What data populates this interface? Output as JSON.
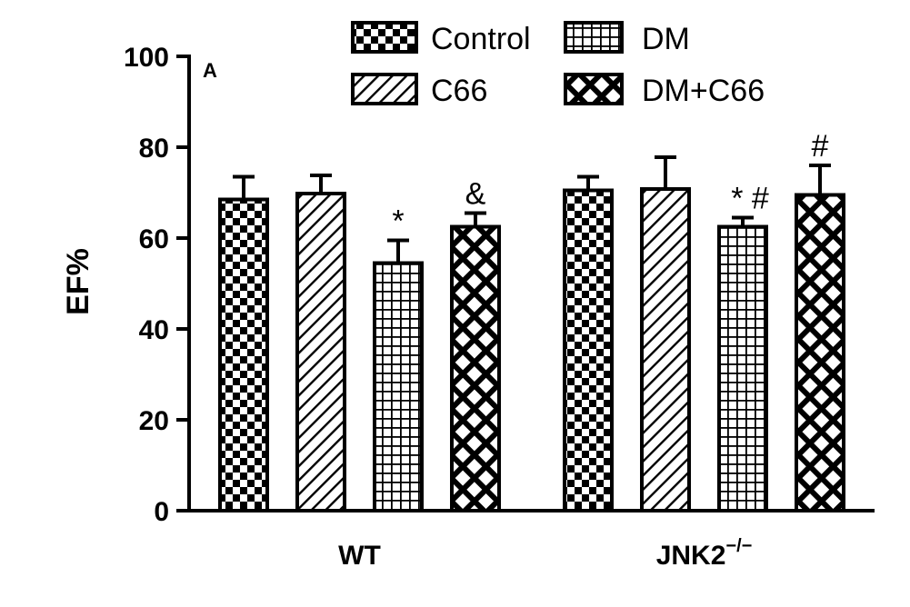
{
  "chart_data": {
    "type": "bar",
    "panel_label": "A",
    "ylabel": "EF%",
    "xlabel": "",
    "ylim": [
      0,
      100
    ],
    "yticks": [
      0,
      20,
      40,
      60,
      80,
      100
    ],
    "groups": [
      {
        "label": "WT",
        "superscript": ""
      },
      {
        "label": "JNK2",
        "superscript": "−/−"
      }
    ],
    "series": [
      {
        "name": "Control",
        "pattern": "checker",
        "values": [
          68.5,
          70.5
        ],
        "errors": [
          5,
          3
        ],
        "annotations": [
          "",
          ""
        ]
      },
      {
        "name": "C66",
        "pattern": "diagonal",
        "values": [
          69.8,
          70.8
        ],
        "errors": [
          4,
          7
        ],
        "annotations": [
          "",
          ""
        ]
      },
      {
        "name": "DM",
        "pattern": "grid",
        "values": [
          54.5,
          62.5
        ],
        "errors": [
          5,
          2
        ],
        "annotations": [
          "*",
          "* #"
        ]
      },
      {
        "name": "DM+C66",
        "pattern": "crosshatch",
        "values": [
          62.5,
          69.5
        ],
        "errors": [
          3,
          6.5
        ],
        "annotations": [
          "&",
          "#"
        ]
      }
    ],
    "legend_placement": "top"
  }
}
